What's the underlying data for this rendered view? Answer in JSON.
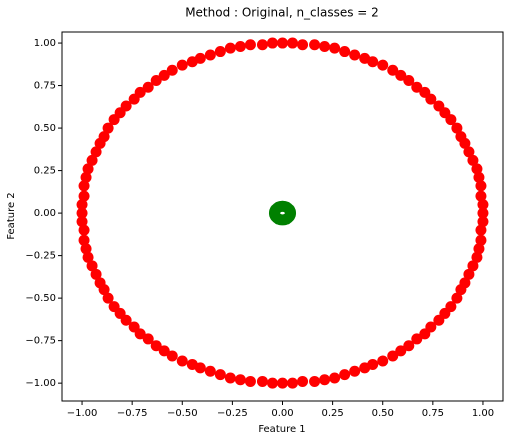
{
  "chart_data": {
    "type": "scatter",
    "title": "Method : Original, n_classes = 2",
    "xlabel": "Feature 1",
    "ylabel": "Feature 2",
    "xlim": [
      -1.1,
      1.1
    ],
    "ylim": [
      -1.105,
      1.065
    ],
    "xticks": [
      {
        "value": -1,
        "label": "−1.00"
      },
      {
        "value": -0.75,
        "label": "−0.75"
      },
      {
        "value": -0.5,
        "label": "−0.50"
      },
      {
        "value": -0.25,
        "label": "−0.25"
      },
      {
        "value": 0,
        "label": "0.00"
      },
      {
        "value": 0.25,
        "label": "0.25"
      },
      {
        "value": 0.5,
        "label": "0.50"
      },
      {
        "value": 0.75,
        "label": "0.75"
      },
      {
        "value": 1,
        "label": "1.00"
      }
    ],
    "yticks": [
      {
        "value": -1,
        "label": "−1.00"
      },
      {
        "value": -0.75,
        "label": "−0.75"
      },
      {
        "value": -0.5,
        "label": "−0.50"
      },
      {
        "value": -0.25,
        "label": "−0.25"
      },
      {
        "value": 0,
        "label": "0.00"
      },
      {
        "value": 0.25,
        "label": "0.25"
      },
      {
        "value": 0.5,
        "label": "0.50"
      },
      {
        "value": 0.75,
        "label": "0.75"
      },
      {
        "value": 1,
        "label": "1.00"
      }
    ],
    "grid": false,
    "series": [
      {
        "color": "#ff0000",
        "x": [
          1,
          1,
          0.99,
          0.99,
          0.98,
          0.97,
          0.95,
          0.93,
          0.91,
          0.89,
          0.87,
          0.84,
          0.81,
          0.78,
          0.74,
          0.71,
          0.67,
          0.63,
          0.59,
          0.55,
          0.5,
          0.45,
          0.41,
          0.36,
          0.31,
          0.26,
          0.21,
          0.16,
          0.1,
          0.05,
          0,
          -0.05,
          -0.1,
          -0.16,
          -0.21,
          -0.26,
          -0.31,
          -0.36,
          -0.41,
          -0.45,
          -0.5,
          -0.55,
          -0.59,
          -0.63,
          -0.67,
          -0.71,
          -0.74,
          -0.78,
          -0.81,
          -0.84,
          -0.87,
          -0.89,
          -0.91,
          -0.93,
          -0.95,
          -0.97,
          -0.98,
          -0.99,
          -0.99,
          -1,
          -1,
          -1,
          -0.99,
          -0.99,
          -0.98,
          -0.97,
          -0.95,
          -0.93,
          -0.91,
          -0.89,
          -0.87,
          -0.84,
          -0.81,
          -0.78,
          -0.74,
          -0.71,
          -0.67,
          -0.63,
          -0.59,
          -0.55,
          -0.5,
          -0.45,
          -0.41,
          -0.36,
          -0.31,
          -0.26,
          -0.21,
          -0.16,
          -0.1,
          -0.05,
          0,
          0.05,
          0.1,
          0.16,
          0.21,
          0.26,
          0.31,
          0.36,
          0.41,
          0.45,
          0.5,
          0.55,
          0.59,
          0.63,
          0.67,
          0.71,
          0.74,
          0.78,
          0.81,
          0.84,
          0.87,
          0.89,
          0.91,
          0.93,
          0.95,
          0.97,
          0.98,
          0.99,
          0.99,
          1
        ],
        "y": [
          0,
          0.05,
          0.1,
          0.16,
          0.21,
          0.26,
          0.31,
          0.36,
          0.41,
          0.45,
          0.5,
          0.55,
          0.59,
          0.63,
          0.67,
          0.71,
          0.74,
          0.78,
          0.81,
          0.84,
          0.87,
          0.89,
          0.91,
          0.93,
          0.95,
          0.97,
          0.98,
          0.99,
          0.99,
          1,
          1,
          1,
          0.99,
          0.99,
          0.98,
          0.97,
          0.95,
          0.93,
          0.91,
          0.89,
          0.87,
          0.84,
          0.81,
          0.78,
          0.74,
          0.71,
          0.67,
          0.63,
          0.59,
          0.55,
          0.5,
          0.45,
          0.41,
          0.36,
          0.31,
          0.26,
          0.21,
          0.16,
          0.1,
          0.05,
          0,
          -0.05,
          -0.1,
          -0.16,
          -0.21,
          -0.26,
          -0.31,
          -0.36,
          -0.41,
          -0.45,
          -0.5,
          -0.55,
          -0.59,
          -0.63,
          -0.67,
          -0.71,
          -0.74,
          -0.78,
          -0.81,
          -0.84,
          -0.87,
          -0.89,
          -0.91,
          -0.93,
          -0.95,
          -0.97,
          -0.98,
          -0.99,
          -0.99,
          -1,
          -1,
          -1,
          -0.99,
          -0.99,
          -0.98,
          -0.97,
          -0.95,
          -0.93,
          -0.91,
          -0.89,
          -0.87,
          -0.84,
          -0.81,
          -0.78,
          -0.74,
          -0.71,
          -0.67,
          -0.63,
          -0.59,
          -0.55,
          -0.5,
          -0.45,
          -0.41,
          -0.36,
          -0.31,
          -0.26,
          -0.21,
          -0.16,
          -0.1,
          -0.05
        ]
      },
      {
        "color": "#008000",
        "x": [
          0.04,
          0.039,
          0.035,
          0.028,
          0.02,
          0.01,
          0,
          -0.01,
          -0.02,
          -0.028,
          -0.035,
          -0.039,
          -0.04,
          -0.039,
          -0.035,
          -0.028,
          -0.02,
          -0.01,
          0,
          0.01,
          0.02,
          0.028,
          0.035,
          0.039
        ],
        "y": [
          0,
          0.01,
          0.02,
          0.028,
          0.035,
          0.039,
          0.04,
          0.039,
          0.035,
          0.028,
          0.02,
          0.01,
          0,
          -0.01,
          -0.02,
          -0.028,
          -0.035,
          -0.039,
          -0.04,
          -0.039,
          -0.035,
          -0.028,
          -0.02,
          -0.01
        ]
      }
    ]
  }
}
